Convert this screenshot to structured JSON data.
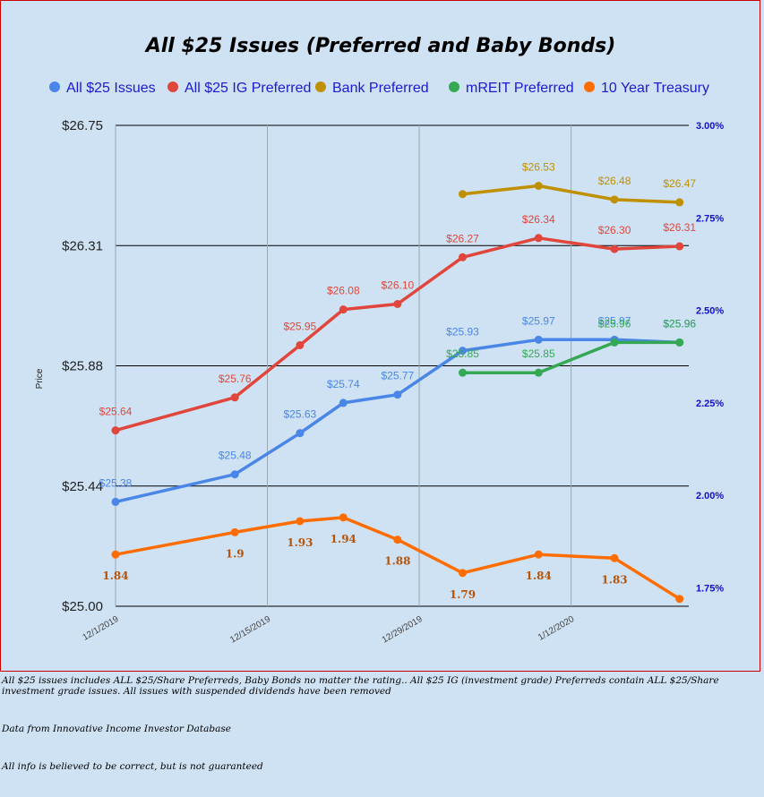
{
  "chart_data": {
    "type": "line",
    "title": "All $25 Issues (Preferred and Baby Bonds)",
    "ylabel": "Price",
    "ylim": [
      25.0,
      26.75
    ],
    "y2lim": [
      1.7,
      3.0
    ],
    "y_ticks": [
      "$25.00",
      "$25.44",
      "$25.88",
      "$26.31",
      "$26.75"
    ],
    "y2_ticks": [
      "1.75%",
      "2.00%",
      "2.25%",
      "2.50%",
      "2.75%",
      "3.00%"
    ],
    "x_ticks": [
      "12/1/2019",
      "12/15/2019",
      "12/29/2019",
      "1/12/2020"
    ],
    "x_range": [
      "2019-12-01",
      "2020-01-22"
    ],
    "grid": true,
    "legend_position": "top",
    "series": [
      {
        "name": "All $25 Issues",
        "color": "#4a86e8",
        "axis": "left",
        "x": [
          "2019-12-01",
          "2019-12-12",
          "2019-12-18",
          "2019-12-22",
          "2019-12-27",
          "2020-01-02",
          "2020-01-09",
          "2020-01-16",
          "2020-01-22"
        ],
        "values": [
          25.38,
          25.48,
          25.63,
          25.74,
          25.77,
          25.93,
          25.97,
          25.97,
          25.96
        ],
        "labels": [
          "$25.38",
          "$25.48",
          "$25.63",
          "$25.74",
          "$25.77",
          "$25.93",
          "$25.97",
          "$25.97",
          "$25.96"
        ]
      },
      {
        "name": "All $25 IG Preferred",
        "color": "#e0463c",
        "axis": "left",
        "x": [
          "2019-12-01",
          "2019-12-12",
          "2019-12-18",
          "2019-12-22",
          "2019-12-27",
          "2020-01-02",
          "2020-01-09",
          "2020-01-16",
          "2020-01-22"
        ],
        "values": [
          25.64,
          25.76,
          25.95,
          26.08,
          26.1,
          26.27,
          26.34,
          26.3,
          26.31
        ],
        "labels": [
          "$25.64",
          "$25.76",
          "$25.95",
          "$26.08",
          "$26.10",
          "$26.27",
          "$26.34",
          "$26.30",
          "$26.31"
        ]
      },
      {
        "name": "Bank Preferred",
        "color": "#bf9000",
        "axis": "left",
        "x": [
          "2020-01-02",
          "2020-01-09",
          "2020-01-16",
          "2020-01-22"
        ],
        "values": [
          26.5,
          26.53,
          26.48,
          26.47
        ],
        "labels": [
          "",
          "$26.53",
          "$26.48",
          "$26.47"
        ]
      },
      {
        "name": "mREIT Preferred",
        "color": "#34a853",
        "axis": "left",
        "x": [
          "2020-01-02",
          "2020-01-09",
          "2020-01-16",
          "2020-01-22"
        ],
        "values": [
          25.85,
          25.85,
          25.96,
          25.96
        ],
        "labels": [
          "$25.85",
          "$25.85",
          "$25.96",
          "$25.96"
        ]
      },
      {
        "name": "10 Year Treasury",
        "color": "#ff6d01",
        "axis": "right",
        "x": [
          "2019-12-01",
          "2019-12-12",
          "2019-12-18",
          "2019-12-22",
          "2019-12-27",
          "2020-01-02",
          "2020-01-09",
          "2020-01-16",
          "2020-01-22"
        ],
        "values": [
          1.84,
          1.9,
          1.93,
          1.94,
          1.88,
          1.79,
          1.84,
          1.83,
          1.72
        ],
        "labels": [
          "1.84",
          "1.9",
          "1.93",
          "1.94",
          "1.88",
          "1.79",
          "1.84",
          "1.83",
          ""
        ]
      }
    ]
  },
  "footnotes": {
    "note1": "All $25 issues includes ALL $25/Share Preferreds, Baby Bonds no matter the rating.. All $25 IG (investment grade) Preferreds contain ALL $25/Share investment grade issues. All issues with suspended dividends have been removed",
    "note2": "Data from Innovative Income Investor Database",
    "note3": "All info is believed to be correct, but is not guaranteed"
  }
}
